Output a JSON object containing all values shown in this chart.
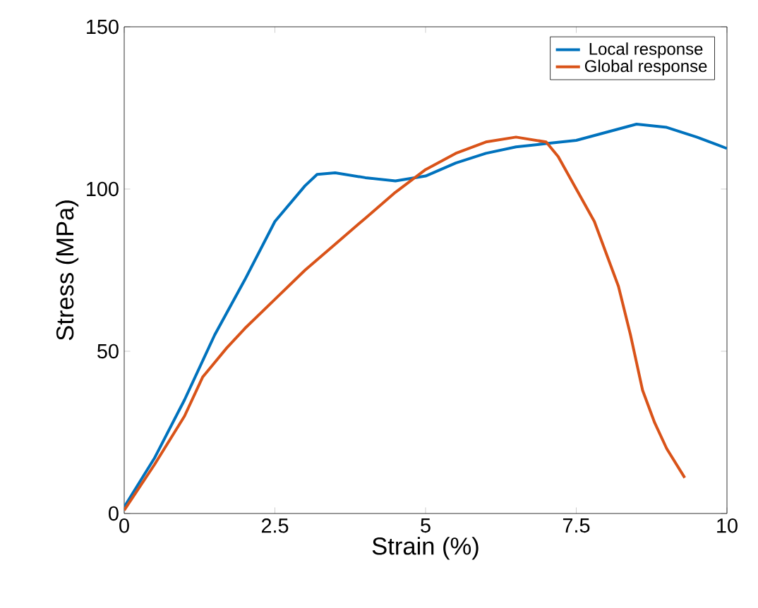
{
  "chart_data": {
    "type": "line",
    "xlabel": "Strain (%)",
    "ylabel": "Stress (MPa)",
    "xlim": [
      0,
      10
    ],
    "ylim": [
      0,
      150
    ],
    "xticks": [
      0,
      2.5,
      5,
      7.5,
      10
    ],
    "yticks": [
      0,
      50,
      100,
      150
    ],
    "grid": false,
    "legend": "top right",
    "line_style": "solid",
    "marker": "none",
    "series": [
      {
        "name": "Local response",
        "color": "#0072bd",
        "x": [
          0,
          0.5,
          1,
          1.5,
          2,
          2.5,
          3,
          3.2,
          3.5,
          4,
          4.5,
          5,
          5.5,
          6,
          6.5,
          7,
          7.5,
          8,
          8.5,
          9,
          9.5,
          10
        ],
        "values": [
          2,
          17,
          35,
          55,
          72,
          90,
          101,
          104.5,
          105,
          103.5,
          102.5,
          104,
          108,
          111,
          113,
          114,
          115,
          117.5,
          120,
          119,
          116,
          112.5
        ]
      },
      {
        "name": "Global response",
        "color": "#d95319",
        "x": [
          0,
          0.5,
          1,
          1.3,
          1.7,
          2,
          2.5,
          3,
          3.5,
          4,
          4.5,
          5,
          5.5,
          6,
          6.5,
          7,
          7.2,
          7.5,
          7.8,
          8,
          8.2,
          8.4,
          8.6,
          8.8,
          9,
          9.3
        ],
        "values": [
          1,
          15,
          30,
          42,
          51,
          57,
          66,
          75,
          83,
          91,
          99,
          106,
          111,
          114.5,
          116,
          114.5,
          110,
          100,
          90,
          80,
          70,
          55,
          38,
          28,
          20,
          11
        ]
      }
    ]
  }
}
